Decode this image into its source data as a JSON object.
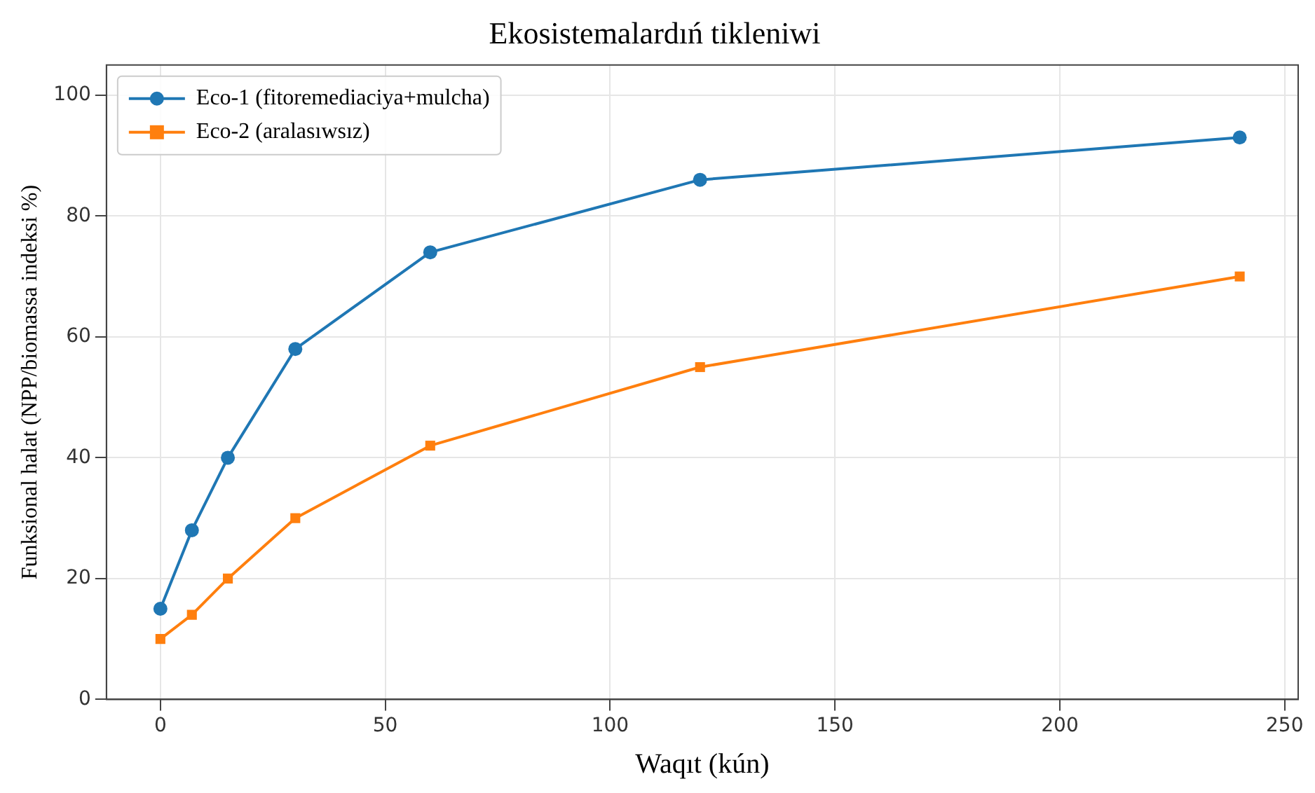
{
  "chart_data": {
    "type": "line",
    "title": "Ekosistemalardıń tikleniwi",
    "xlabel": "Waqıt (kún)",
    "ylabel": "Funksional halat (NPP/biomassa indeksi %)",
    "x": [
      0,
      7,
      15,
      30,
      60,
      120,
      240
    ],
    "series": [
      {
        "name": "Eco-1 (fitoremediaciya+mulcha)",
        "color": "#1f77b4",
        "marker": "circle",
        "values": [
          15,
          28,
          40,
          58,
          74,
          86,
          93
        ]
      },
      {
        "name": "Eco-2 (aralasıwsız)",
        "color": "#ff7f0e",
        "marker": "square",
        "values": [
          10,
          14,
          20,
          30,
          42,
          55,
          70
        ]
      }
    ],
    "xlim": [
      -12,
      253
    ],
    "xticks": [
      0,
      50,
      100,
      150,
      200,
      250
    ],
    "ylim": [
      0,
      105
    ],
    "yticks": [
      0,
      20,
      40,
      60,
      80,
      100
    ],
    "grid": true,
    "legend": "top left",
    "line_style": "solid"
  }
}
